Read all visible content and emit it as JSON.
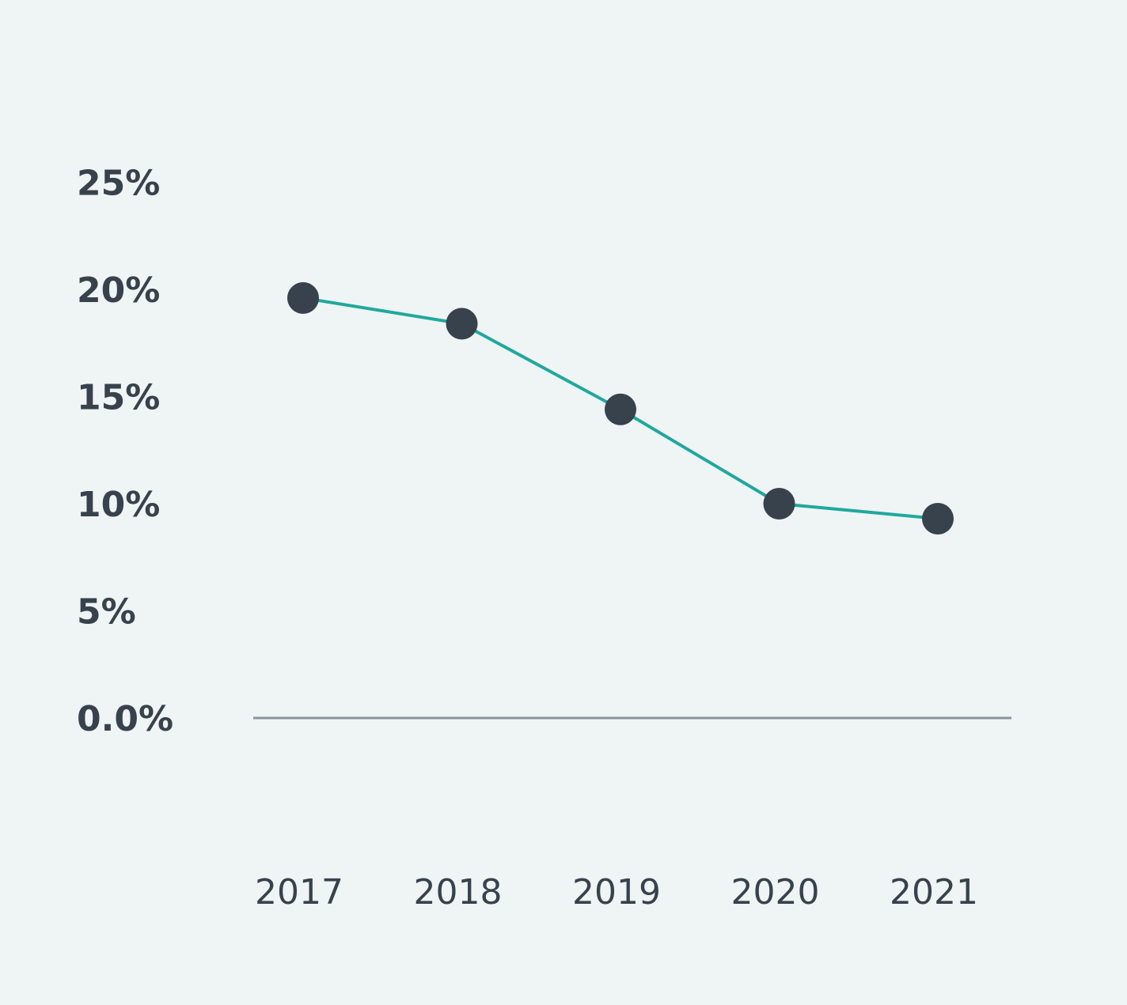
{
  "chart_data": {
    "type": "line",
    "categories": [
      "2017",
      "2018",
      "2019",
      "2020",
      "2021"
    ],
    "series": [
      {
        "color": "#20a89e",
        "marker_color": "#37424d",
        "values": [
          19.6,
          18.4,
          14.4,
          10.0,
          9.3
        ]
      }
    ],
    "ylim": [
      0,
      25
    ],
    "yticks": [
      {
        "value": 0,
        "label": "0.0%"
      },
      {
        "value": 5,
        "label": "5%"
      },
      {
        "value": 10,
        "label": "10%"
      },
      {
        "value": 15,
        "label": "15%"
      },
      {
        "value": 20,
        "label": "20%"
      },
      {
        "value": 25,
        "label": "25%"
      }
    ],
    "grid": false
  }
}
